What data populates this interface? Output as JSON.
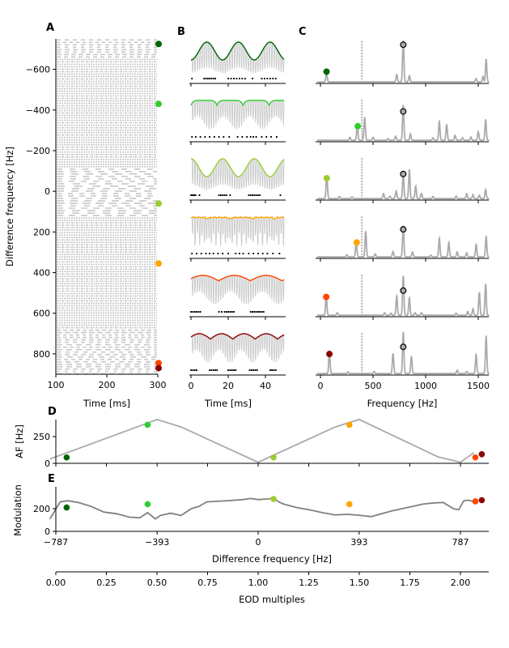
{
  "chart_data": [
    {
      "panel": "A",
      "type": "scatter",
      "description": "Spike raster: rows of spikes per difference frequency",
      "xlabel": "Time [ms]",
      "ylabel": "Difference frequency [Hz]",
      "xlim": [
        100,
        300
      ],
      "ylim": [
        -750,
        900
      ],
      "y_inverted": true,
      "xticks": [
        100,
        200,
        300
      ],
      "yticks": [
        -600,
        -400,
        -200,
        0,
        200,
        400,
        600,
        800
      ],
      "ytick_labels": [
        "−600",
        "−400",
        "−200",
        "0",
        "200",
        "400",
        "600",
        "800"
      ],
      "raster_row_step_hz": 12,
      "markers": [
        {
          "df": -725,
          "color": "#006400"
        },
        {
          "df": -430,
          "color": "#32cd32"
        },
        {
          "df": 60,
          "color": "#9acd32"
        },
        {
          "df": 355,
          "color": "#ffa500"
        },
        {
          "df": 845,
          "color": "#ff4500"
        },
        {
          "df": 870,
          "color": "#8b0000"
        }
      ]
    },
    {
      "panel": "B",
      "type": "line",
      "description": "Stimulus waveforms with envelopes and spike trains",
      "xlabel": "Time [ms]",
      "xlim": [
        0,
        50
      ],
      "xticks": [
        0,
        20,
        40
      ],
      "rows": [
        {
          "color": "#006400",
          "envelope_period_ms": 17,
          "carrier_hz": 800,
          "envelope_shape": "sine",
          "spikes_ms": [
            0.5,
            7,
            8,
            9,
            10,
            11,
            12,
            13,
            20,
            21.5,
            23,
            24.5,
            26,
            27.5,
            29,
            33,
            38,
            39.5,
            41,
            42.5,
            44,
            45.5
          ]
        },
        {
          "color": "#32cd32",
          "envelope_period_ms": 14,
          "carrier_hz": 800,
          "envelope_shape": "cusp",
          "spikes_ms": [
            0.5,
            2.5,
            5,
            7.5,
            10,
            12.5,
            15,
            17.5,
            20.5,
            25,
            27.5,
            30,
            32,
            33.5,
            35,
            38,
            40.5,
            43,
            46
          ]
        },
        {
          "color": "#9acd32",
          "envelope_period_ms": 17,
          "carrier_hz": 800,
          "envelope_shape": "sine",
          "spikes_ms": [
            0,
            0.8,
            1.6,
            2.4,
            4.5,
            15,
            16,
            17,
            18,
            19,
            21,
            31,
            32,
            33,
            34,
            35,
            36,
            37,
            48
          ]
        },
        {
          "color": "#ffa500",
          "envelope_period_ms": 2.8,
          "carrier_hz": 800,
          "envelope_shape": "jagged",
          "spikes_ms": [
            0.5,
            3,
            5.5,
            8,
            10,
            12,
            14.5,
            17,
            20,
            24,
            26,
            28,
            31,
            33.5,
            36,
            38.5,
            41,
            44,
            47.5
          ]
        },
        {
          "color": "#ff4500",
          "envelope_period_ms": 17,
          "carrier_hz": 800,
          "envelope_shape": "cusp-inverted",
          "spikes_ms": [
            0,
            1,
            2,
            3,
            4,
            5,
            15,
            16.5,
            18,
            19,
            20,
            21,
            22,
            23,
            32,
            33,
            34,
            35,
            36,
            37,
            38,
            39
          ]
        },
        {
          "color": "#8b0000",
          "envelope_period_ms": 12,
          "carrier_hz": 800,
          "envelope_shape": "cusp-inverted",
          "spikes_ms": [
            0,
            1,
            2,
            3,
            10,
            11,
            12,
            13,
            14,
            20,
            21,
            22,
            23,
            24,
            31.5,
            32.5,
            33.5,
            34.5,
            35.5,
            42.5,
            43.5,
            44.5,
            45.5
          ]
        }
      ]
    },
    {
      "panel": "C",
      "type": "line",
      "description": "Power spectra with AF marker (colored) and EOD frequency marker (open circle)",
      "xlabel": "Frequency [Hz]",
      "xlim": [
        -30,
        1610
      ],
      "xticks": [
        0,
        500,
        1000,
        1500
      ],
      "eod_frequency_hz": 787,
      "dashed_line_hz": 393,
      "rows": [
        {
          "color": "#006400",
          "af_hz": 58,
          "af_level": 0.26,
          "peaks": [
            [
              58,
              0.22
            ],
            [
              725,
              0.18
            ],
            [
              787,
              1.0
            ],
            [
              845,
              0.15
            ],
            [
              1480,
              0.08
            ],
            [
              1545,
              0.13
            ],
            [
              1575,
              0.55
            ]
          ],
          "eod_marker_level": 0.9
        },
        {
          "color": "#32cd32",
          "af_hz": 355,
          "af_level": 0.35,
          "peaks": [
            [
              280,
              0.07
            ],
            [
              350,
              0.35
            ],
            [
              420,
              0.55
            ],
            [
              500,
              0.07
            ],
            [
              640,
              0.04
            ],
            [
              715,
              0.1
            ],
            [
              787,
              0.85
            ],
            [
              855,
              0.15
            ],
            [
              1070,
              0.06
            ],
            [
              1130,
              0.45
            ],
            [
              1200,
              0.38
            ],
            [
              1280,
              0.12
            ],
            [
              1350,
              0.06
            ],
            [
              1430,
              0.08
            ],
            [
              1500,
              0.2
            ],
            [
              1570,
              0.5
            ]
          ],
          "eod_marker_level": 0.7
        },
        {
          "color": "#9acd32",
          "af_hz": 60,
          "af_level": 0.5,
          "peaks": [
            [
              60,
              0.55
            ],
            [
              180,
              0.05
            ],
            [
              300,
              0.04
            ],
            [
              600,
              0.12
            ],
            [
              660,
              0.06
            ],
            [
              720,
              0.18
            ],
            [
              787,
              0.6
            ],
            [
              845,
              0.7
            ],
            [
              905,
              0.3
            ],
            [
              960,
              0.12
            ],
            [
              1070,
              0.05
            ],
            [
              1290,
              0.06
            ],
            [
              1390,
              0.12
            ],
            [
              1450,
              0.1
            ],
            [
              1510,
              0.08
            ],
            [
              1570,
              0.22
            ]
          ],
          "eod_marker_level": 0.6
        },
        {
          "color": "#ffa500",
          "af_hz": 345,
          "af_level": 0.36,
          "peaks": [
            [
              250,
              0.05
            ],
            [
              340,
              0.36
            ],
            [
              430,
              0.62
            ],
            [
              520,
              0.07
            ],
            [
              690,
              0.13
            ],
            [
              787,
              0.75
            ],
            [
              875,
              0.12
            ],
            [
              1050,
              0.04
            ],
            [
              1130,
              0.45
            ],
            [
              1220,
              0.35
            ],
            [
              1300,
              0.12
            ],
            [
              1390,
              0.1
            ],
            [
              1480,
              0.3
            ],
            [
              1575,
              0.5
            ]
          ],
          "eod_marker_level": 0.67
        },
        {
          "color": "#ff4500",
          "af_hz": 55,
          "af_level": 0.45,
          "peaks": [
            [
              55,
              0.45
            ],
            [
              160,
              0.06
            ],
            [
              610,
              0.06
            ],
            [
              670,
              0.05
            ],
            [
              725,
              0.46
            ],
            [
              787,
              0.95
            ],
            [
              845,
              0.42
            ],
            [
              900,
              0.06
            ],
            [
              960,
              0.06
            ],
            [
              1290,
              0.05
            ],
            [
              1400,
              0.09
            ],
            [
              1450,
              0.16
            ],
            [
              1510,
              0.55
            ],
            [
              1570,
              0.75
            ]
          ],
          "eod_marker_level": 0.6
        },
        {
          "color": "#8b0000",
          "af_hz": 85,
          "af_level": 0.48,
          "peaks": [
            [
              85,
              0.5
            ],
            [
              260,
              0.04
            ],
            [
              510,
              0.05
            ],
            [
              690,
              0.48
            ],
            [
              787,
              1.0
            ],
            [
              865,
              0.4
            ],
            [
              1300,
              0.08
            ],
            [
              1390,
              0.05
            ],
            [
              1480,
              0.45
            ],
            [
              1575,
              0.9
            ]
          ],
          "eod_marker_level": 0.65
        }
      ]
    },
    {
      "panel": "D",
      "type": "line",
      "ylabel": "AF [Hz]",
      "xlim": [
        -870,
        840
      ],
      "ylim": [
        0,
        400
      ],
      "yticks": [
        0,
        250
      ],
      "x": [
        -810,
        -393,
        -300,
        0,
        300,
        393,
        700,
        787,
        840
      ],
      "y": [
        40,
        410,
        340,
        10,
        340,
        410,
        60,
        10,
        100
      ],
      "markers": [
        {
          "x": -745,
          "y": 55,
          "color": "#006400"
        },
        {
          "x": -430,
          "y": 360,
          "color": "#32cd32"
        },
        {
          "x": 60,
          "y": 55,
          "color": "#9acd32"
        },
        {
          "x": 355,
          "y": 360,
          "color": "#ffa500"
        },
        {
          "x": 845,
          "y": 55,
          "color": "#ff4500"
        },
        {
          "x": 870,
          "y": 85,
          "color": "#8b0000"
        }
      ]
    },
    {
      "panel": "E",
      "type": "line",
      "ylabel": "Modulation",
      "xlabel": "Difference frequency [Hz]",
      "xlim": [
        -870,
        840
      ],
      "ylim": [
        0,
        380
      ],
      "yticks": [
        0,
        200
      ],
      "xticks": [
        -787,
        -393,
        0,
        393,
        787
      ],
      "xtick_labels": [
        "−787",
        "−393",
        "0",
        "393",
        "787"
      ],
      "x": [
        -810,
        -770,
        -740,
        -700,
        -650,
        -600,
        -550,
        -500,
        -460,
        -430,
        -400,
        -380,
        -360,
        -340,
        -300,
        -260,
        -230,
        -200,
        -160,
        -120,
        -90,
        -60,
        -30,
        0,
        30,
        60,
        80,
        100,
        150,
        200,
        250,
        300,
        350,
        400,
        440,
        480,
        520,
        560,
        600,
        640,
        680,
        720,
        760,
        780,
        800,
        820,
        840
      ],
      "y": [
        110,
        260,
        270,
        255,
        220,
        170,
        155,
        125,
        120,
        165,
        110,
        140,
        150,
        160,
        140,
        200,
        220,
        260,
        265,
        270,
        275,
        280,
        290,
        280,
        285,
        290,
        260,
        240,
        210,
        190,
        165,
        145,
        150,
        140,
        130,
        155,
        180,
        200,
        220,
        240,
        250,
        255,
        200,
        190,
        270,
        275,
        260
      ],
      "markers": [
        {
          "x": -745,
          "y": 210,
          "color": "#006400"
        },
        {
          "x": -430,
          "y": 240,
          "color": "#32cd32"
        },
        {
          "x": 60,
          "y": 285,
          "color": "#9acd32"
        },
        {
          "x": 355,
          "y": 240,
          "color": "#ffa500"
        },
        {
          "x": 845,
          "y": 265,
          "color": "#ff4500"
        },
        {
          "x": 870,
          "y": 275,
          "color": "#8b0000"
        }
      ]
    },
    {
      "panel": "EOD-axis",
      "type": "axis",
      "xlabel": "EOD multiples",
      "xlim": [
        0,
        2.13
      ],
      "xticks": [
        0,
        0.25,
        0.5,
        0.75,
        1.0,
        1.25,
        1.5,
        1.75,
        2.0
      ],
      "xtick_labels": [
        "0.00",
        "0.25",
        "0.50",
        "0.75",
        "1.00",
        "1.25",
        "1.50",
        "1.75",
        "2.00"
      ]
    }
  ],
  "labels": {
    "panel_a": "A",
    "panel_b": "B",
    "panel_c": "C",
    "panel_d": "D",
    "panel_e": "E",
    "a_xlabel": "Time [ms]",
    "a_ylabel": "Difference frequency [Hz]",
    "b_xlabel": "Time [ms]",
    "c_xlabel": "Frequency [Hz]",
    "d_ylabel": "AF [Hz]",
    "e_ylabel": "Modulation",
    "e_xlabel": "Difference frequency [Hz]",
    "eod_xlabel": "EOD multiples"
  },
  "colors": {
    "raster": "#c8c8c8",
    "spectrum": "#aaaaaa",
    "af_line": "#aaaaaa",
    "mod_line": "#808080",
    "axis": "#000000"
  }
}
